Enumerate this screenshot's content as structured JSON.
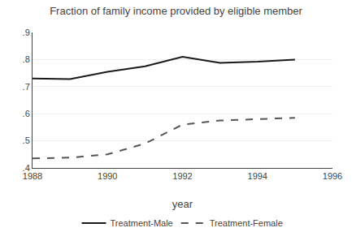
{
  "chart_data": {
    "type": "line",
    "title": "Fraction of family income provided by eligible member",
    "xlabel": "year",
    "x": [
      1988,
      1989,
      1990,
      1991,
      1992,
      1993,
      1994,
      1995
    ],
    "series": [
      {
        "name": "Treatment-Male",
        "color": "#1a1a1a",
        "line_style": "solid",
        "values": [
          0.73,
          0.728,
          0.755,
          0.775,
          0.81,
          0.788,
          0.792,
          0.8
        ]
      },
      {
        "name": "Treatment-Female",
        "color": "#555555",
        "line_style": "dashed",
        "values": [
          0.435,
          0.438,
          0.45,
          0.49,
          0.56,
          0.575,
          0.58,
          0.585
        ]
      }
    ],
    "xlim": [
      1988,
      1996
    ],
    "xticks": [
      1988,
      1990,
      1992,
      1994,
      1996
    ],
    "ylim": [
      0.4,
      0.9
    ],
    "yticks": [
      {
        "value": 0.4,
        "label": ".4"
      },
      {
        "value": 0.5,
        "label": ".5"
      },
      {
        "value": 0.6,
        "label": ".6"
      },
      {
        "value": 0.7,
        "label": ".7"
      },
      {
        "value": 0.8,
        "label": ".8"
      },
      {
        "value": 0.9,
        "label": ".9"
      }
    ],
    "grid": "y",
    "legend": "bottom"
  }
}
